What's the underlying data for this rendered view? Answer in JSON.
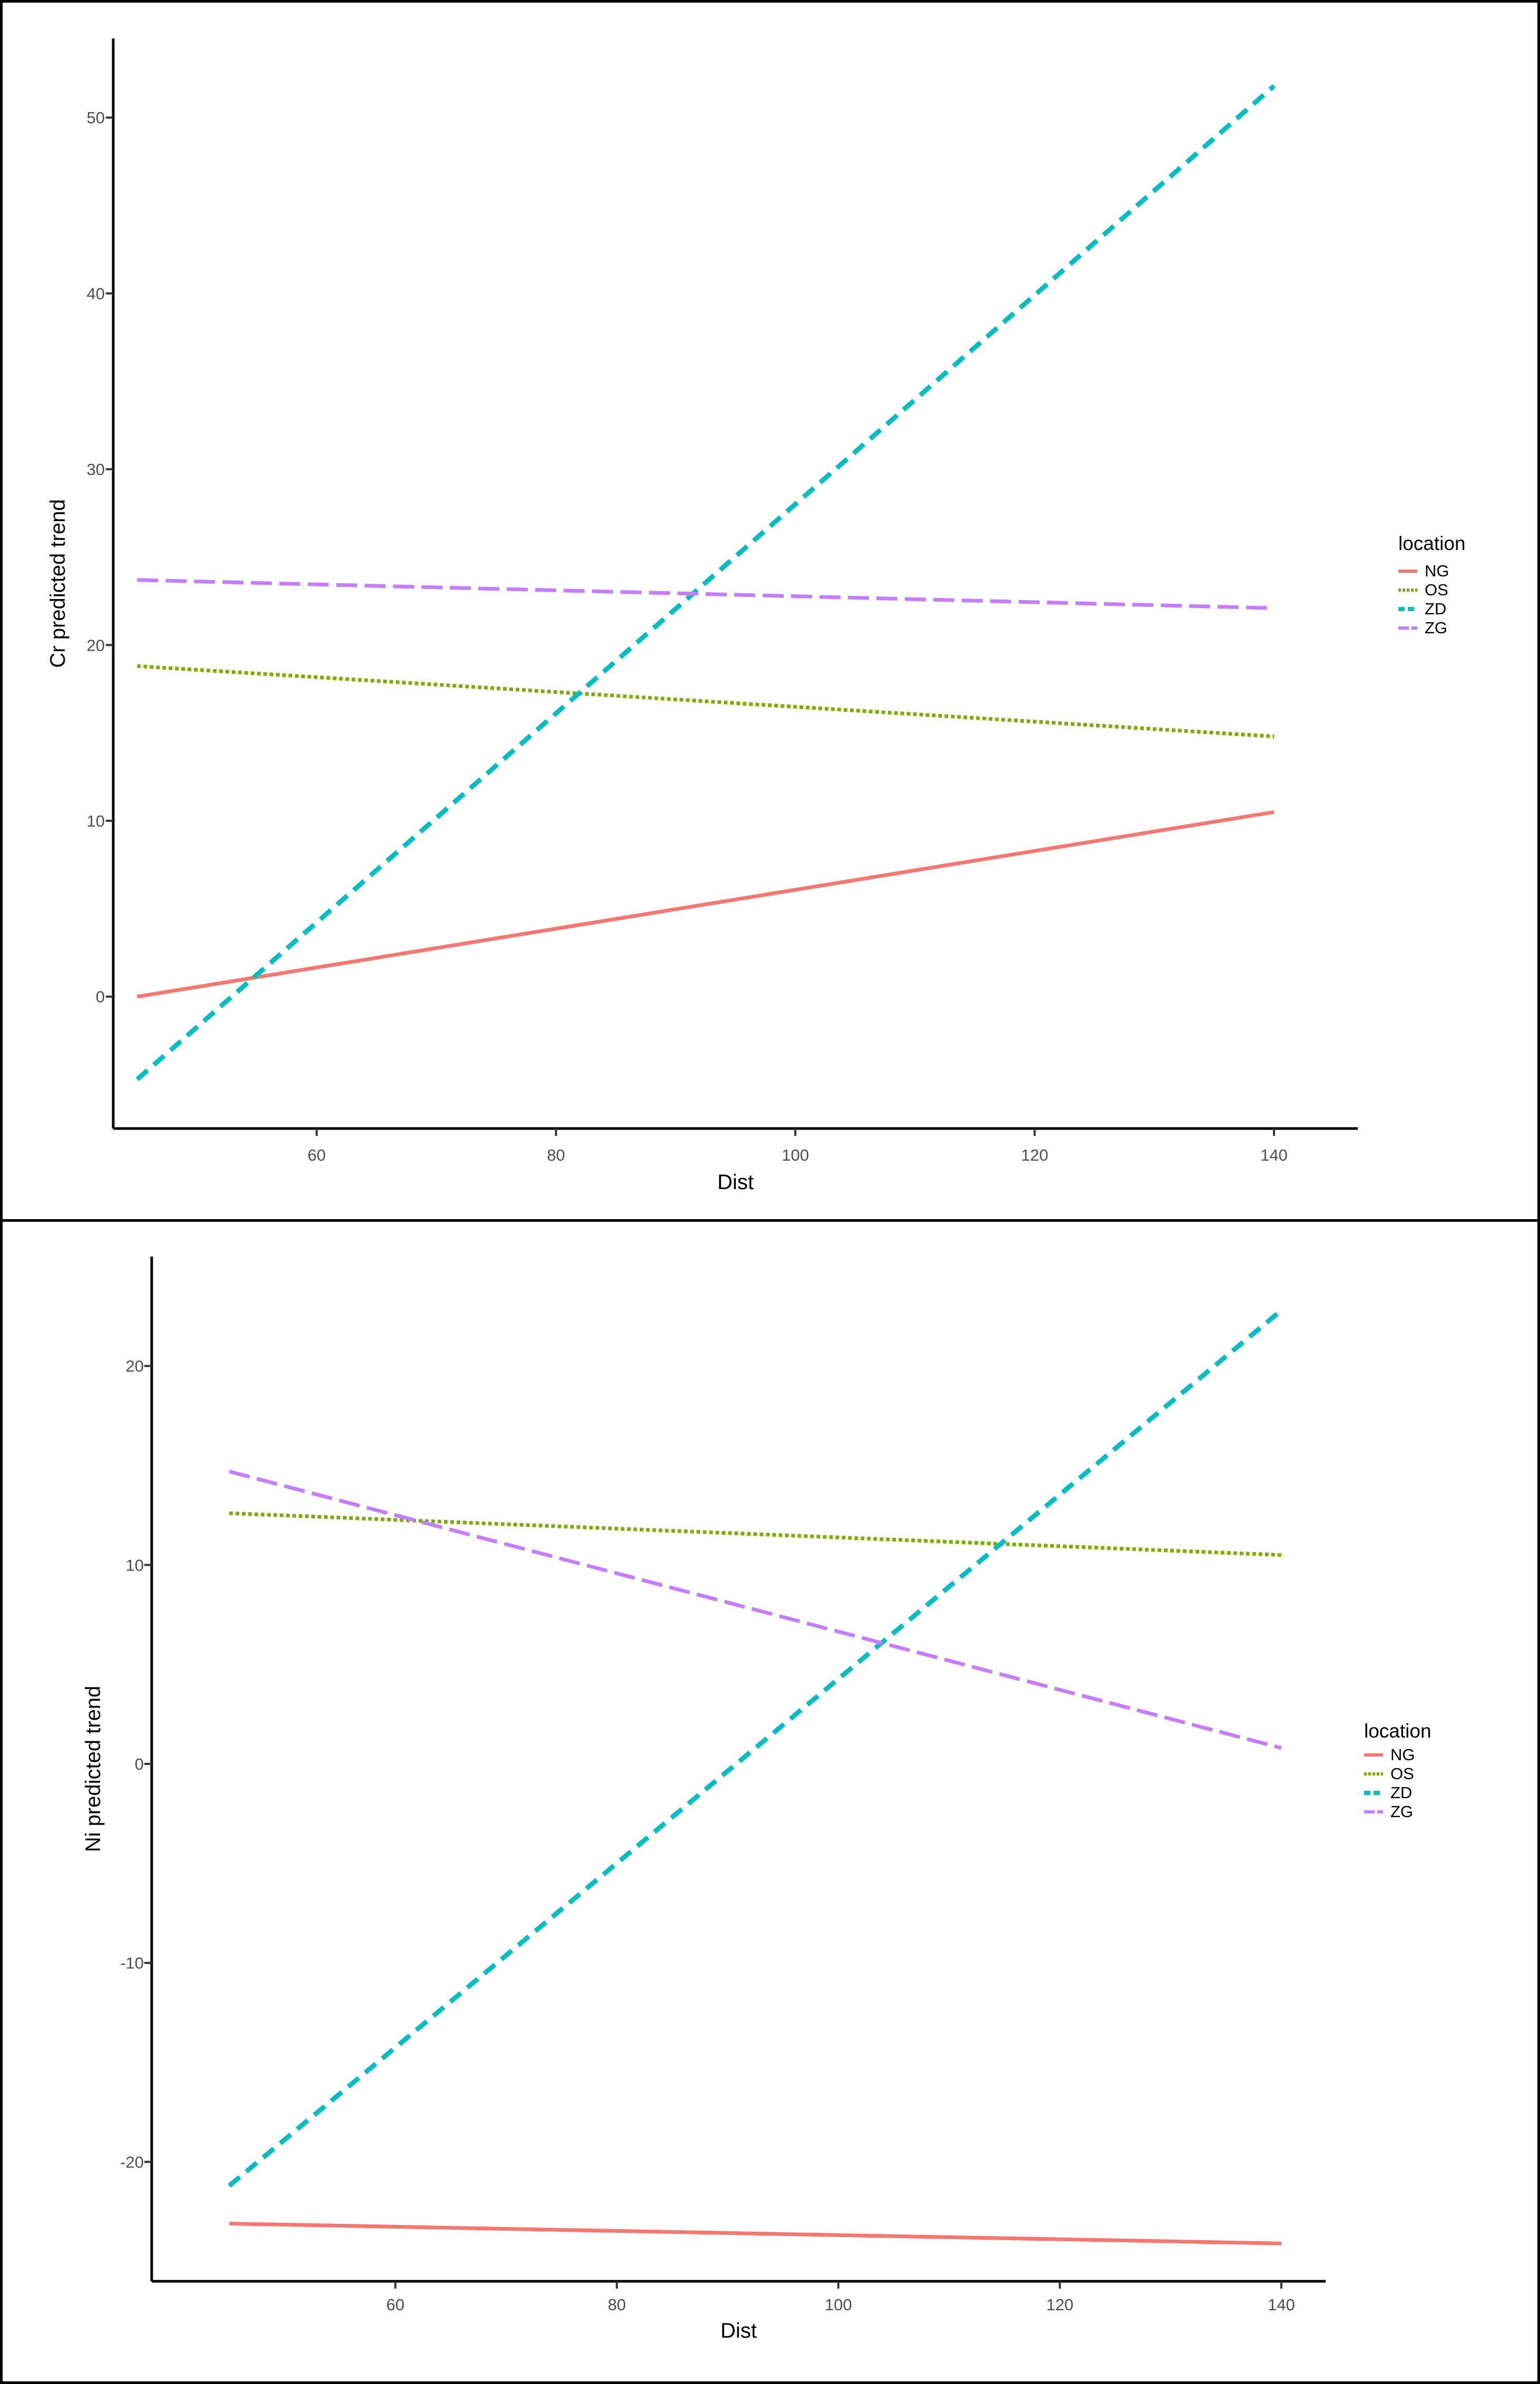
{
  "chart_data": [
    {
      "type": "line",
      "xlabel": "Dist",
      "ylabel": "Cr  predicted trend",
      "xlim": [
        43,
        147
      ],
      "ylim": [
        -7.5,
        54.5
      ],
      "xticks": [
        60,
        80,
        100,
        120,
        140
      ],
      "yticks": [
        0,
        10,
        20,
        30,
        40,
        50
      ],
      "legend": {
        "title": "location",
        "position": "right"
      },
      "series": [
        {
          "name": "NG",
          "color": "#F8766D",
          "linestyle": "solid",
          "x": [
            45,
            140
          ],
          "y": [
            0,
            10.5
          ]
        },
        {
          "name": "OS",
          "color": "#7CAE00",
          "linestyle": "dotted",
          "x": [
            45,
            140
          ],
          "y": [
            18.8,
            14.8
          ]
        },
        {
          "name": "ZD",
          "color": "#00BFC4",
          "linestyle": "dashed",
          "x": [
            45,
            140
          ],
          "y": [
            -4.7,
            51.8
          ]
        },
        {
          "name": "ZG",
          "color": "#C77CFF",
          "linestyle": "longdash",
          "x": [
            45,
            140
          ],
          "y": [
            23.7,
            22.1
          ]
        }
      ]
    },
    {
      "type": "line",
      "xlabel": "Dist",
      "ylabel": "Ni predicted trend",
      "xlim": [
        38,
        144
      ],
      "ylim": [
        -26,
        25.5
      ],
      "xticks": [
        60,
        80,
        100,
        120,
        140
      ],
      "yticks": [
        -20,
        -10,
        0,
        10,
        20
      ],
      "legend": {
        "title": "location",
        "position": "right"
      },
      "series": [
        {
          "name": "NG",
          "color": "#F8766D",
          "linestyle": "solid",
          "x": [
            45,
            140
          ],
          "y": [
            -23.1,
            -24.1
          ]
        },
        {
          "name": "OS",
          "color": "#7CAE00",
          "linestyle": "dotted",
          "x": [
            45,
            140
          ],
          "y": [
            12.6,
            10.5
          ]
        },
        {
          "name": "ZD",
          "color": "#00BFC4",
          "linestyle": "dashed",
          "x": [
            45,
            140
          ],
          "y": [
            -21.2,
            22.8
          ]
        },
        {
          "name": "ZG",
          "color": "#C77CFF",
          "linestyle": "longdash",
          "x": [
            45,
            140
          ],
          "y": [
            14.7,
            0.8
          ]
        }
      ]
    }
  ]
}
